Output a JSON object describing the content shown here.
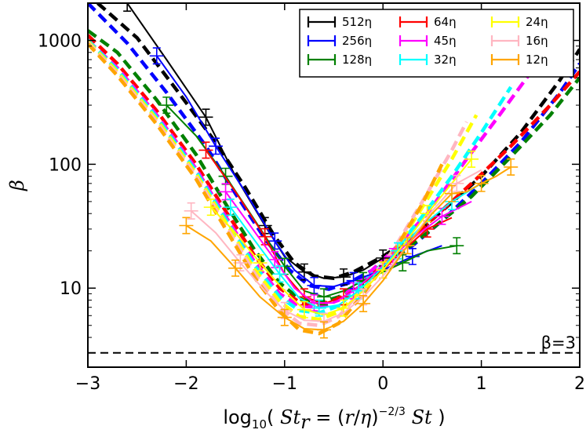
{
  "chart_data": {
    "type": "line",
    "title": "",
    "xlabel": "log10( Str = (r/η)^-2/3 St )",
    "xlabel_parts": {
      "main": "log",
      "sub": "10",
      "open": "( ",
      "st": "St",
      "sub_r": "r",
      "eq": " = (",
      "r": "r",
      "slash": "/",
      "eta": "η",
      "close_paren": ")",
      "exp": "−2/3",
      "st2": " St",
      "end": " )"
    },
    "ylabel": "β",
    "xlim": [
      -3,
      2
    ],
    "ylim": [
      2.3,
      2000
    ],
    "yscale": "log",
    "xticks": [
      -3,
      -2,
      -1,
      0,
      1,
      2
    ],
    "xtick_labels": [
      "−3",
      "−2",
      "−1",
      "0",
      "1",
      "2"
    ],
    "yticks": [
      10,
      100,
      1000
    ],
    "ytick_labels": [
      "10",
      "100",
      "1000"
    ],
    "legend_position": "top-right",
    "reference_line": {
      "y": 3,
      "label": "β=3",
      "style": "dashed"
    },
    "series": [
      {
        "name": "512η",
        "color": "#000000",
        "solid": [
          [
            -2.6,
            2000
          ],
          [
            -2.2,
            700
          ],
          [
            -1.8,
            240
          ],
          [
            -1.5,
            80
          ],
          [
            -1.2,
            32
          ],
          [
            -1.0,
            18
          ],
          [
            -0.8,
            13.5
          ],
          [
            -0.6,
            12
          ],
          [
            -0.4,
            12.3
          ],
          [
            -0.2,
            14
          ],
          [
            0.0,
            17.5
          ]
        ],
        "dashed": [
          [
            -2.9,
            2000
          ],
          [
            -2.5,
            1050
          ],
          [
            -2.1,
            400
          ],
          [
            -1.7,
            150
          ],
          [
            -1.4,
            65
          ],
          [
            -1.1,
            26
          ],
          [
            -0.9,
            16
          ],
          [
            -0.7,
            12.5
          ],
          [
            -0.5,
            12
          ],
          [
            -0.3,
            13.5
          ],
          [
            0.0,
            18
          ],
          [
            0.3,
            26
          ],
          [
            0.6,
            42
          ],
          [
            1.0,
            80
          ],
          [
            1.4,
            180
          ],
          [
            1.8,
            480
          ],
          [
            2.0,
            850
          ]
        ]
      },
      {
        "name": "256η",
        "color": "#0000ff",
        "solid": [
          [
            -2.3,
            750
          ],
          [
            -2.0,
            350
          ],
          [
            -1.7,
            140
          ],
          [
            -1.4,
            60
          ],
          [
            -1.1,
            24
          ],
          [
            -0.9,
            14
          ],
          [
            -0.7,
            10.5
          ],
          [
            -0.5,
            10.3
          ],
          [
            -0.3,
            11.5
          ],
          [
            0.0,
            14
          ],
          [
            0.3,
            18
          ],
          [
            0.6,
            22
          ]
        ],
        "dashed": [
          [
            -3.0,
            2000
          ],
          [
            -2.6,
            950
          ],
          [
            -2.2,
            380
          ],
          [
            -1.8,
            140
          ],
          [
            -1.5,
            58
          ],
          [
            -1.2,
            25
          ],
          [
            -0.95,
            14
          ],
          [
            -0.75,
            10.5
          ],
          [
            -0.55,
            9.8
          ],
          [
            -0.35,
            11
          ],
          [
            0.0,
            15.5
          ],
          [
            0.3,
            22
          ],
          [
            0.6,
            35
          ],
          [
            1.0,
            70
          ],
          [
            1.4,
            150
          ],
          [
            1.8,
            380
          ],
          [
            2.0,
            650
          ]
        ]
      },
      {
        "name": "128η",
        "color": "#008000",
        "solid": [
          [
            -2.2,
            300
          ],
          [
            -1.9,
            170
          ],
          [
            -1.6,
            80
          ],
          [
            -1.3,
            35
          ],
          [
            -1.0,
            15
          ],
          [
            -0.8,
            9.5
          ],
          [
            -0.6,
            8.5
          ],
          [
            -0.4,
            9.5
          ],
          [
            -0.2,
            11.5
          ],
          [
            0.0,
            13.5
          ],
          [
            0.2,
            16
          ],
          [
            0.45,
            20
          ],
          [
            0.75,
            22
          ]
        ],
        "dashed": [
          [
            -3.0,
            1200
          ],
          [
            -2.7,
            800
          ],
          [
            -2.3,
            330
          ],
          [
            -1.9,
            120
          ],
          [
            -1.6,
            48
          ],
          [
            -1.3,
            20
          ],
          [
            -1.05,
            11
          ],
          [
            -0.85,
            8.2
          ],
          [
            -0.65,
            7.6
          ],
          [
            -0.45,
            8.5
          ],
          [
            -0.2,
            11.5
          ],
          [
            0.1,
            17
          ],
          [
            0.45,
            28
          ],
          [
            0.9,
            55
          ],
          [
            1.3,
            115
          ],
          [
            1.7,
            250
          ],
          [
            2.0,
            500
          ]
        ]
      },
      {
        "name": "64η",
        "color": "#ff0000",
        "solid": [
          [
            -1.8,
            130
          ],
          [
            -1.5,
            60
          ],
          [
            -1.2,
            26
          ],
          [
            -1.0,
            13
          ],
          [
            -0.8,
            8.5
          ],
          [
            -0.6,
            7.5
          ],
          [
            -0.4,
            8.5
          ],
          [
            -0.2,
            11
          ],
          [
            0.0,
            14
          ],
          [
            0.2,
            20
          ],
          [
            0.45,
            30
          ],
          [
            0.7,
            37
          ]
        ],
        "dashed": [
          [
            -3.0,
            1100
          ],
          [
            -2.7,
            650
          ],
          [
            -2.3,
            270
          ],
          [
            -1.9,
            100
          ],
          [
            -1.6,
            42
          ],
          [
            -1.3,
            18
          ],
          [
            -1.05,
            10
          ],
          [
            -0.85,
            7.7
          ],
          [
            -0.65,
            7.3
          ],
          [
            -0.45,
            8.2
          ],
          [
            -0.2,
            11.5
          ],
          [
            0.1,
            19
          ],
          [
            0.45,
            33
          ],
          [
            0.9,
            70
          ],
          [
            1.3,
            140
          ],
          [
            1.7,
            300
          ],
          [
            2.0,
            560
          ]
        ]
      },
      {
        "name": "45η",
        "color": "#ff00ff",
        "solid": [
          [
            -1.6,
            60
          ],
          [
            -1.35,
            32
          ],
          [
            -1.1,
            17
          ],
          [
            -0.9,
            10
          ],
          [
            -0.7,
            7.6
          ],
          [
            -0.5,
            7.6
          ],
          [
            -0.3,
            9.5
          ],
          [
            -0.1,
            13
          ],
          [
            0.1,
            18
          ],
          [
            0.35,
            27
          ],
          [
            0.6,
            38
          ],
          [
            0.9,
            50
          ]
        ],
        "dashed": [
          [
            -3.0,
            1000
          ],
          [
            -2.7,
            600
          ],
          [
            -2.3,
            250
          ],
          [
            -1.9,
            92
          ],
          [
            -1.6,
            38
          ],
          [
            -1.3,
            16
          ],
          [
            -1.05,
            9
          ],
          [
            -0.85,
            7.2
          ],
          [
            -0.65,
            7.0
          ],
          [
            -0.45,
            8.0
          ],
          [
            -0.2,
            12
          ],
          [
            0.1,
            20
          ],
          [
            0.45,
            40
          ],
          [
            0.85,
            110
          ],
          [
            1.2,
            260
          ],
          [
            1.5,
            550
          ],
          [
            1.8,
            1100
          ]
        ]
      },
      {
        "name": "32η",
        "color": "#00ffff",
        "solid": [
          [
            -1.55,
            45
          ],
          [
            -1.3,
            24
          ],
          [
            -1.05,
            13
          ],
          [
            -0.85,
            8.3
          ],
          [
            -0.65,
            6.9
          ],
          [
            -0.45,
            7.3
          ],
          [
            -0.25,
            9.5
          ],
          [
            -0.05,
            13.5
          ],
          [
            0.15,
            20
          ],
          [
            0.4,
            32
          ],
          [
            0.7,
            50
          ],
          [
            1.0,
            70
          ]
        ],
        "dashed": [
          [
            -3.0,
            1000
          ],
          [
            -2.7,
            580
          ],
          [
            -2.3,
            240
          ],
          [
            -1.9,
            88
          ],
          [
            -1.6,
            36
          ],
          [
            -1.3,
            15
          ],
          [
            -1.05,
            8.5
          ],
          [
            -0.85,
            6.6
          ],
          [
            -0.65,
            6.3
          ],
          [
            -0.45,
            7.2
          ],
          [
            -0.2,
            11
          ],
          [
            0.1,
            19
          ],
          [
            0.4,
            38
          ],
          [
            0.7,
            80
          ],
          [
            1.0,
            180
          ],
          [
            1.3,
            420
          ]
        ]
      },
      {
        "name": "24η",
        "color": "#ffff00",
        "solid": [
          [
            -1.75,
            45
          ],
          [
            -1.5,
            28
          ],
          [
            -1.25,
            16
          ],
          [
            -1.0,
            9.5
          ],
          [
            -0.8,
            6.7
          ],
          [
            -0.6,
            6.1
          ],
          [
            -0.4,
            6.9
          ],
          [
            -0.2,
            9.5
          ],
          [
            0.0,
            14
          ],
          [
            0.2,
            22
          ],
          [
            0.45,
            40
          ],
          [
            0.7,
            70
          ],
          [
            0.9,
            110
          ]
        ],
        "dashed": [
          [
            -3.0,
            980
          ],
          [
            -2.7,
            560
          ],
          [
            -2.3,
            230
          ],
          [
            -1.9,
            84
          ],
          [
            -1.6,
            34
          ],
          [
            -1.3,
            14
          ],
          [
            -1.05,
            7.8
          ],
          [
            -0.85,
            5.9
          ],
          [
            -0.65,
            5.6
          ],
          [
            -0.45,
            6.4
          ],
          [
            -0.2,
            10
          ],
          [
            0.1,
            19
          ],
          [
            0.4,
            45
          ],
          [
            0.7,
            110
          ],
          [
            0.95,
            250
          ]
        ]
      },
      {
        "name": "16η",
        "color": "#ffb6c1",
        "solid": [
          [
            -1.95,
            42
          ],
          [
            -1.7,
            28
          ],
          [
            -1.45,
            16
          ],
          [
            -1.2,
            9.5
          ],
          [
            -1.0,
            6.6
          ],
          [
            -0.8,
            5.5
          ],
          [
            -0.6,
            5.4
          ],
          [
            -0.4,
            6.3
          ],
          [
            -0.2,
            8.5
          ],
          [
            0.0,
            12.5
          ],
          [
            0.25,
            22
          ],
          [
            0.5,
            42
          ],
          [
            0.75,
            70
          ],
          [
            1.0,
            90
          ]
        ],
        "dashed": [
          [
            -3.0,
            960
          ],
          [
            -2.7,
            540
          ],
          [
            -2.3,
            220
          ],
          [
            -1.9,
            80
          ],
          [
            -1.6,
            32
          ],
          [
            -1.3,
            13
          ],
          [
            -1.05,
            7.0
          ],
          [
            -0.85,
            5.2
          ],
          [
            -0.65,
            5.0
          ],
          [
            -0.45,
            5.9
          ],
          [
            -0.2,
            10
          ],
          [
            0.1,
            20
          ],
          [
            0.4,
            50
          ],
          [
            0.7,
            130
          ],
          [
            0.85,
            220
          ]
        ]
      },
      {
        "name": "12η",
        "color": "#ffa500",
        "solid": [
          [
            -2.0,
            32
          ],
          [
            -1.75,
            24
          ],
          [
            -1.5,
            14.5
          ],
          [
            -1.25,
            8.5
          ],
          [
            -1.0,
            5.8
          ],
          [
            -0.8,
            4.7
          ],
          [
            -0.6,
            4.6
          ],
          [
            -0.4,
            5.4
          ],
          [
            -0.2,
            7.5
          ],
          [
            0.0,
            11.5
          ],
          [
            0.25,
            22
          ],
          [
            0.5,
            40
          ],
          [
            0.7,
            58
          ],
          [
            0.85,
            60
          ],
          [
            1.0,
            70
          ],
          [
            1.15,
            80
          ],
          [
            1.3,
            95
          ]
        ],
        "dashed": [
          [
            -3.0,
            940
          ],
          [
            -2.7,
            520
          ],
          [
            -2.3,
            210
          ],
          [
            -1.9,
            76
          ],
          [
            -1.6,
            30
          ],
          [
            -1.3,
            12
          ],
          [
            -1.05,
            6.5
          ],
          [
            -0.85,
            4.6
          ],
          [
            -0.65,
            4.3
          ],
          [
            -0.45,
            5.2
          ],
          [
            -0.2,
            9
          ],
          [
            0.1,
            19
          ],
          [
            0.4,
            48
          ],
          [
            0.6,
            100
          ]
        ]
      }
    ]
  }
}
